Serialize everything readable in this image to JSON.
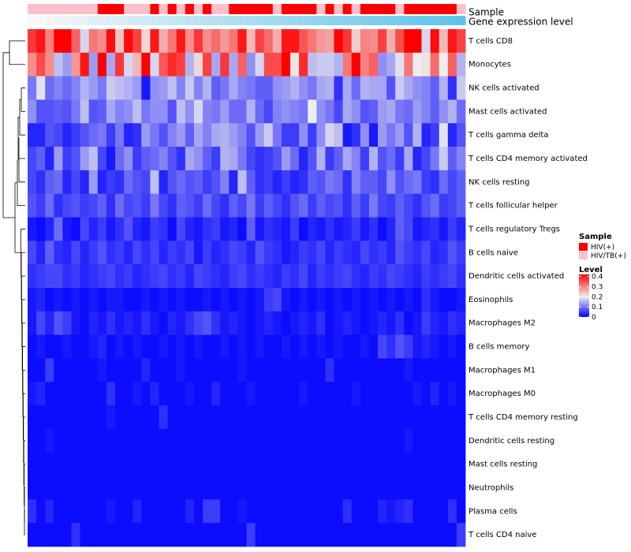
{
  "chart_data": {
    "type": "heatmap",
    "rows": [
      "T cells CD8",
      "Monocytes",
      "NK cells activated",
      "Mast cells activated",
      "T cells gamma delta",
      "T cells CD4 memory activated",
      "NK cells resting",
      "T cells follicular helper",
      "T cells regulatory  Tregs",
      "B cells naive",
      "Dendritic cells activated",
      "Eosinophils",
      "Macrophages M2",
      "B cells memory",
      "Macrophages M1",
      "Macrophages M0",
      "T cells CD4 memory resting",
      "Dendritic cells resting",
      "Mast cells resting",
      "Neutrophils",
      "Plasma cells",
      "T cells CD4 naive"
    ],
    "columns": 50,
    "sample_groups": [
      "HIV/TB(+)",
      "HIV/TB(+)",
      "HIV/TB(+)",
      "HIV/TB(+)",
      "HIV/TB(+)",
      "HIV/TB(+)",
      "HIV/TB(+)",
      "HIV/TB(+)",
      "HIV(+)",
      "HIV(+)",
      "HIV(+)",
      "HIV/TB(+)",
      "HIV/TB(+)",
      "HIV/TB(+)",
      "HIV(+)",
      "HIV/TB(+)",
      "HIV(+)",
      "HIV/TB(+)",
      "HIV(+)",
      "HIV/TB(+)",
      "HIV(+)",
      "HIV/TB(+)",
      "HIV/TB(+)",
      "HIV(+)",
      "HIV(+)",
      "HIV(+)",
      "HIV(+)",
      "HIV(+)",
      "HIV/TB(+)",
      "HIV(+)",
      "HIV(+)",
      "HIV(+)",
      "HIV(+)",
      "HIV/TB(+)",
      "HIV(+)",
      "HIV/TB(+)",
      "HIV(+)",
      "HIV/TB(+)",
      "HIV(+)",
      "HIV(+)",
      "HIV(+)",
      "HIV(+)",
      "HIV/TB(+)",
      "HIV(+)",
      "HIV(+)",
      "HIV(+)",
      "HIV(+)",
      "HIV(+)",
      "HIV(+)",
      "HIV/TB(+)"
    ],
    "annotations": [
      {
        "name": "Sample",
        "type": "categorical"
      },
      {
        "name": "Gene expression level",
        "type": "continuous",
        "from": "#f8f8f8",
        "to": "#5ec3ea"
      }
    ],
    "legends": {
      "sample": {
        "title": "Sample",
        "entries": [
          {
            "label": "HIV(+)",
            "color": "#ff0000"
          },
          {
            "label": "HIV/TB(+)",
            "color": "#ffc0cb"
          }
        ]
      },
      "level": {
        "title": "Level",
        "ticks": [
          0.4,
          0.3,
          0.2,
          0.1,
          0
        ],
        "range": [
          0,
          0.42
        ]
      }
    },
    "colormap": {
      "low": "#0000ff",
      "mid": "#eeeeee",
      "high": "#ff0000",
      "mid_value": 0.2
    },
    "dendrogram": "rows",
    "values": [
      [
        0.37,
        0.4,
        0.3,
        0.42,
        0.42,
        0.33,
        0.18,
        0.31,
        0.29,
        0.41,
        0.24,
        0.41,
        0.36,
        0.22,
        0.4,
        0.26,
        0.31,
        0.4,
        0.29,
        0.37,
        0.29,
        0.32,
        0.28,
        0.31,
        0.4,
        0.25,
        0.36,
        0.32,
        0.26,
        0.4,
        0.4,
        0.34,
        0.31,
        0.28,
        0.27,
        0.42,
        0.37,
        0.23,
        0.3,
        0.29,
        0.36,
        0.26,
        0.35,
        0.42,
        0.42,
        0.18,
        0.41,
        0.25,
        0.4,
        0.36
      ],
      [
        0.29,
        0.35,
        0.29,
        0.16,
        0.13,
        0.28,
        0.4,
        0.13,
        0.42,
        0.14,
        0.37,
        0.18,
        0.25,
        0.42,
        0.18,
        0.34,
        0.38,
        0.36,
        0.15,
        0.22,
        0.36,
        0.14,
        0.37,
        0.14,
        0.33,
        0.12,
        0.18,
        0.35,
        0.35,
        0.42,
        0.21,
        0.38,
        0.16,
        0.17,
        0.17,
        0.15,
        0.31,
        0.42,
        0.3,
        0.33,
        0.12,
        0.14,
        0.19,
        0.31,
        0.2,
        0.21,
        0.32,
        0.2,
        0.33,
        0.15
      ],
      [
        0.1,
        0.19,
        0.09,
        0.11,
        0.09,
        0.11,
        0.15,
        0.13,
        0.1,
        0.17,
        0.16,
        0.15,
        0.13,
        0.02,
        0.12,
        0.13,
        0.16,
        0.11,
        0.17,
        0.11,
        0.15,
        0.08,
        0.1,
        0.14,
        0.11,
        0.1,
        0.08,
        0.08,
        0.12,
        0.13,
        0.15,
        0.12,
        0.1,
        0.14,
        0.15,
        0.04,
        0.14,
        0.09,
        0.15,
        0.14,
        0.14,
        0.07,
        0.17,
        0.14,
        0.12,
        0.11,
        0.08,
        0.15,
        0.04,
        0.17
      ],
      [
        0.12,
        0.07,
        0.07,
        0.08,
        0.07,
        0.1,
        0.16,
        0.07,
        0.08,
        0.14,
        0.11,
        0.12,
        0.16,
        0.1,
        0.12,
        0.12,
        0.07,
        0.16,
        0.12,
        0.18,
        0.11,
        0.1,
        0.13,
        0.09,
        0.09,
        0.15,
        0.09,
        0.06,
        0.11,
        0.12,
        0.11,
        0.1,
        0.2,
        0.12,
        0.1,
        0.06,
        0.14,
        0.12,
        0.07,
        0.08,
        0.13,
        0.14,
        0.1,
        0.09,
        0.13,
        0.11,
        0.08,
        0.12,
        0.15,
        0.09
      ],
      [
        0.03,
        0.03,
        0.07,
        0.06,
        0.03,
        0.05,
        0.07,
        0.09,
        0.1,
        0.05,
        0.1,
        0.03,
        0.04,
        0.13,
        0.1,
        0.07,
        0.11,
        0.13,
        0.08,
        0.14,
        0.11,
        0.14,
        0.15,
        0.13,
        0.11,
        0.07,
        0.13,
        0.17,
        0.1,
        0.05,
        0.05,
        0.12,
        0.05,
        0.12,
        0.18,
        0.16,
        0.02,
        0.04,
        0.12,
        0.02,
        0.13,
        0.1,
        0.13,
        0.07,
        0.15,
        0.03,
        0.05,
        0.19,
        0.03,
        0.07
      ],
      [
        0.06,
        0.08,
        0.03,
        0.13,
        0.05,
        0.07,
        0.13,
        0.16,
        0.06,
        0.02,
        0.09,
        0.12,
        0.05,
        0.08,
        0.09,
        0.11,
        0.07,
        0.04,
        0.14,
        0.12,
        0.08,
        0.05,
        0.15,
        0.14,
        0.1,
        0.06,
        0.04,
        0.05,
        0.07,
        0.13,
        0.09,
        0.03,
        0.07,
        0.15,
        0.05,
        0.08,
        0.14,
        0.11,
        0.05,
        0.15,
        0.07,
        0.09,
        0.05,
        0.14,
        0.03,
        0.06,
        0.1,
        0.17,
        0.08,
        0.11
      ],
      [
        0.06,
        0.04,
        0.08,
        0.09,
        0.03,
        0.06,
        0.03,
        0.13,
        0.03,
        0.05,
        0.04,
        0.09,
        0.07,
        0.06,
        0.16,
        0.03,
        0.07,
        0.09,
        0.07,
        0.08,
        0.05,
        0.07,
        0.11,
        0.03,
        0.16,
        0.08,
        0.04,
        0.05,
        0.03,
        0.05,
        0.03,
        0.04,
        0.08,
        0.07,
        0.1,
        0.09,
        0.04,
        0.11,
        0.08,
        0.08,
        0.06,
        0.12,
        0.07,
        0.09,
        0.1,
        0.05,
        0.04,
        0.09,
        0.06,
        0.08
      ],
      [
        0.07,
        0.05,
        0.09,
        0.04,
        0.06,
        0.07,
        0.05,
        0.06,
        0.08,
        0.04,
        0.09,
        0.06,
        0.07,
        0.05,
        0.1,
        0.06,
        0.04,
        0.08,
        0.07,
        0.05,
        0.09,
        0.06,
        0.04,
        0.08,
        0.06,
        0.1,
        0.05,
        0.08,
        0.06,
        0.04,
        0.07,
        0.09,
        0.05,
        0.08,
        0.06,
        0.07,
        0.04,
        0.08,
        0.05,
        0.1,
        0.06,
        0.05,
        0.08,
        0.06,
        0.04,
        0.07,
        0.09,
        0.05,
        0.06,
        0.08
      ],
      [
        0.02,
        0.01,
        0.03,
        0.09,
        0.02,
        0.01,
        0.06,
        0.03,
        0.05,
        0.02,
        0.04,
        0.07,
        0.03,
        0.02,
        0.05,
        0.04,
        0.01,
        0.06,
        0.03,
        0.02,
        0.04,
        0.05,
        0.02,
        0.03,
        0.01,
        0.08,
        0.02,
        0.04,
        0.03,
        0.02,
        0.05,
        0.01,
        0.03,
        0.02,
        0.04,
        0.02,
        0.03,
        0.05,
        0.02,
        0.04,
        0.01,
        0.03,
        0.08,
        0.06,
        0.02,
        0.03,
        0.04,
        0.02,
        0.05,
        0.03
      ],
      [
        0.06,
        0.03,
        0.08,
        0.04,
        0.03,
        0.06,
        0.03,
        0.05,
        0.07,
        0.04,
        0.05,
        0.03,
        0.06,
        0.04,
        0.06,
        0.03,
        0.05,
        0.04,
        0.06,
        0.02,
        0.05,
        0.03,
        0.04,
        0.06,
        0.05,
        0.03,
        0.07,
        0.05,
        0.04,
        0.02,
        0.03,
        0.05,
        0.04,
        0.06,
        0.03,
        0.05,
        0.04,
        0.03,
        0.06,
        0.04,
        0.05,
        0.03,
        0.07,
        0.05,
        0.04,
        0.06,
        0.03,
        0.04,
        0.07,
        0.05
      ],
      [
        0.04,
        0.05,
        0.06,
        0.06,
        0.04,
        0.05,
        0.03,
        0.04,
        0.05,
        0.06,
        0.04,
        0.05,
        0.03,
        0.04,
        0.05,
        0.06,
        0.04,
        0.05,
        0.03,
        0.06,
        0.05,
        0.04,
        0.03,
        0.05,
        0.06,
        0.04,
        0.05,
        0.04,
        0.03,
        0.05,
        0.04,
        0.06,
        0.03,
        0.05,
        0.04,
        0.05,
        0.06,
        0.04,
        0.03,
        0.05,
        0.04,
        0.06,
        0.05,
        0.04,
        0.03,
        0.05,
        0.04,
        0.05,
        0.06,
        0.04
      ],
      [
        0.02,
        0.03,
        0.01,
        0.02,
        0.01,
        0.02,
        0.01,
        0.02,
        0.01,
        0.02,
        0.02,
        0.01,
        0.01,
        0.02,
        0.01,
        0.02,
        0.01,
        0.02,
        0.01,
        0.01,
        0.02,
        0.01,
        0.02,
        0.01,
        0.02,
        0.01,
        0.02,
        0.05,
        0.06,
        0.02,
        0.01,
        0.02,
        0.01,
        0.02,
        0.01,
        0.02,
        0.01,
        0.02,
        0.01,
        0.02,
        0.01,
        0.02,
        0.01,
        0.02,
        0.01,
        0.04,
        0.02,
        0.01,
        0.01,
        0.02
      ],
      [
        0.02,
        0.06,
        0.03,
        0.07,
        0.05,
        0.02,
        0.01,
        0.03,
        0.02,
        0.04,
        0.02,
        0.03,
        0.02,
        0.04,
        0.02,
        0.01,
        0.03,
        0.02,
        0.04,
        0.06,
        0.07,
        0.04,
        0.02,
        0.03,
        0.02,
        0.01,
        0.02,
        0.03,
        0.02,
        0.01,
        0.02,
        0.03,
        0.02,
        0.04,
        0.01,
        0.02,
        0.03,
        0.02,
        0.01,
        0.02,
        0.03,
        0.02,
        0.04,
        0.01,
        0.02,
        0.05,
        0.03,
        0.02,
        0.04,
        0.03
      ],
      [
        0.01,
        0.02,
        0.01,
        0.01,
        0.02,
        0.01,
        0.01,
        0.02,
        0.03,
        0.01,
        0.02,
        0.01,
        0.02,
        0.01,
        0.01,
        0.02,
        0.01,
        0.02,
        0.01,
        0.02,
        0.01,
        0.01,
        0.02,
        0.01,
        0.02,
        0.01,
        0.02,
        0.01,
        0.01,
        0.02,
        0.01,
        0.02,
        0.01,
        0.02,
        0.01,
        0.02,
        0.01,
        0.01,
        0.02,
        0.01,
        0.06,
        0.04,
        0.07,
        0.05,
        0.02,
        0.03,
        0.02,
        0.01,
        0.02,
        0.01
      ],
      [
        0.01,
        0.01,
        0.05,
        0.01,
        0.01,
        0.01,
        0.01,
        0.01,
        0.02,
        0.01,
        0.01,
        0.01,
        0.01,
        0.03,
        0.01,
        0.01,
        0.01,
        0.02,
        0.01,
        0.01,
        0.01,
        0.01,
        0.01,
        0.01,
        0.02,
        0.01,
        0.01,
        0.01,
        0.01,
        0.01,
        0.01,
        0.01,
        0.01,
        0.01,
        0.04,
        0.01,
        0.01,
        0.01,
        0.01,
        0.01,
        0.01,
        0.01,
        0.01,
        0.02,
        0.01,
        0.01,
        0.01,
        0.01,
        0.01,
        0.01
      ],
      [
        0.02,
        0.03,
        0.01,
        0.01,
        0.01,
        0.01,
        0.01,
        0.01,
        0.01,
        0.04,
        0.01,
        0.01,
        0.02,
        0.01,
        0.03,
        0.01,
        0.01,
        0.01,
        0.02,
        0.01,
        0.01,
        0.03,
        0.01,
        0.01,
        0.01,
        0.02,
        0.01,
        0.01,
        0.01,
        0.01,
        0.01,
        0.02,
        0.01,
        0.01,
        0.01,
        0.01,
        0.01,
        0.02,
        0.01,
        0.01,
        0.01,
        0.01,
        0.01,
        0.01,
        0.02,
        0.01,
        0.03,
        0.01,
        0.02,
        0.01
      ],
      [
        0.01,
        0.01,
        0.01,
        0.01,
        0.01,
        0.01,
        0.01,
        0.01,
        0.01,
        0.02,
        0.01,
        0.01,
        0.01,
        0.01,
        0.01,
        0.04,
        0.01,
        0.01,
        0.01,
        0.01,
        0.01,
        0.01,
        0.01,
        0.01,
        0.01,
        0.01,
        0.01,
        0.01,
        0.01,
        0.01,
        0.01,
        0.01,
        0.01,
        0.01,
        0.01,
        0.01,
        0.01,
        0.01,
        0.01,
        0.01,
        0.01,
        0.01,
        0.01,
        0.01,
        0.01,
        0.01,
        0.01,
        0.01,
        0.01,
        0.01
      ],
      [
        0.01,
        0.01,
        0.02,
        0.01,
        0.01,
        0.01,
        0.01,
        0.01,
        0.01,
        0.01,
        0.01,
        0.01,
        0.01,
        0.01,
        0.01,
        0.01,
        0.01,
        0.01,
        0.01,
        0.01,
        0.01,
        0.01,
        0.01,
        0.01,
        0.01,
        0.01,
        0.01,
        0.01,
        0.01,
        0.01,
        0.01,
        0.01,
        0.01,
        0.01,
        0.01,
        0.01,
        0.01,
        0.01,
        0.01,
        0.01,
        0.01,
        0.01,
        0.01,
        0.02,
        0.01,
        0.01,
        0.01,
        0.01,
        0.01,
        0.01
      ],
      [
        0.01,
        0.01,
        0.01,
        0.01,
        0.01,
        0.01,
        0.01,
        0.01,
        0.01,
        0.01,
        0.01,
        0.01,
        0.01,
        0.01,
        0.01,
        0.01,
        0.01,
        0.01,
        0.01,
        0.01,
        0.01,
        0.01,
        0.01,
        0.01,
        0.01,
        0.01,
        0.01,
        0.01,
        0.01,
        0.01,
        0.01,
        0.01,
        0.01,
        0.01,
        0.01,
        0.01,
        0.01,
        0.01,
        0.01,
        0.01,
        0.01,
        0.01,
        0.01,
        0.01,
        0.01,
        0.01,
        0.01,
        0.01,
        0.01,
        0.01
      ],
      [
        0.01,
        0.01,
        0.01,
        0.01,
        0.01,
        0.01,
        0.01,
        0.01,
        0.01,
        0.01,
        0.01,
        0.01,
        0.01,
        0.01,
        0.01,
        0.01,
        0.01,
        0.01,
        0.01,
        0.01,
        0.01,
        0.01,
        0.01,
        0.01,
        0.01,
        0.01,
        0.01,
        0.01,
        0.01,
        0.01,
        0.01,
        0.01,
        0.01,
        0.01,
        0.01,
        0.01,
        0.01,
        0.01,
        0.01,
        0.01,
        0.01,
        0.01,
        0.01,
        0.01,
        0.01,
        0.01,
        0.01,
        0.01,
        0.01,
        0.01
      ],
      [
        0.04,
        0.01,
        0.03,
        0.01,
        0.01,
        0.01,
        0.01,
        0.01,
        0.01,
        0.02,
        0.01,
        0.01,
        0.03,
        0.01,
        0.01,
        0.01,
        0.01,
        0.01,
        0.03,
        0.01,
        0.05,
        0.05,
        0.01,
        0.01,
        0.02,
        0.01,
        0.01,
        0.01,
        0.01,
        0.01,
        0.01,
        0.01,
        0.01,
        0.01,
        0.01,
        0.01,
        0.04,
        0.01,
        0.01,
        0.01,
        0.03,
        0.02,
        0.03,
        0.04,
        0.01,
        0.01,
        0.01,
        0.01,
        0.04,
        0.01
      ],
      [
        0.01,
        0.01,
        0.01,
        0.01,
        0.01,
        0.04,
        0.01,
        0.01,
        0.01,
        0.01,
        0.01,
        0.01,
        0.01,
        0.01,
        0.01,
        0.01,
        0.01,
        0.01,
        0.01,
        0.01,
        0.01,
        0.01,
        0.01,
        0.01,
        0.01,
        0.05,
        0.01,
        0.01,
        0.01,
        0.01,
        0.01,
        0.01,
        0.01,
        0.01,
        0.01,
        0.01,
        0.01,
        0.01,
        0.01,
        0.01,
        0.01,
        0.01,
        0.01,
        0.01,
        0.01,
        0.01,
        0.01,
        0.01,
        0.01,
        0.05
      ]
    ]
  }
}
